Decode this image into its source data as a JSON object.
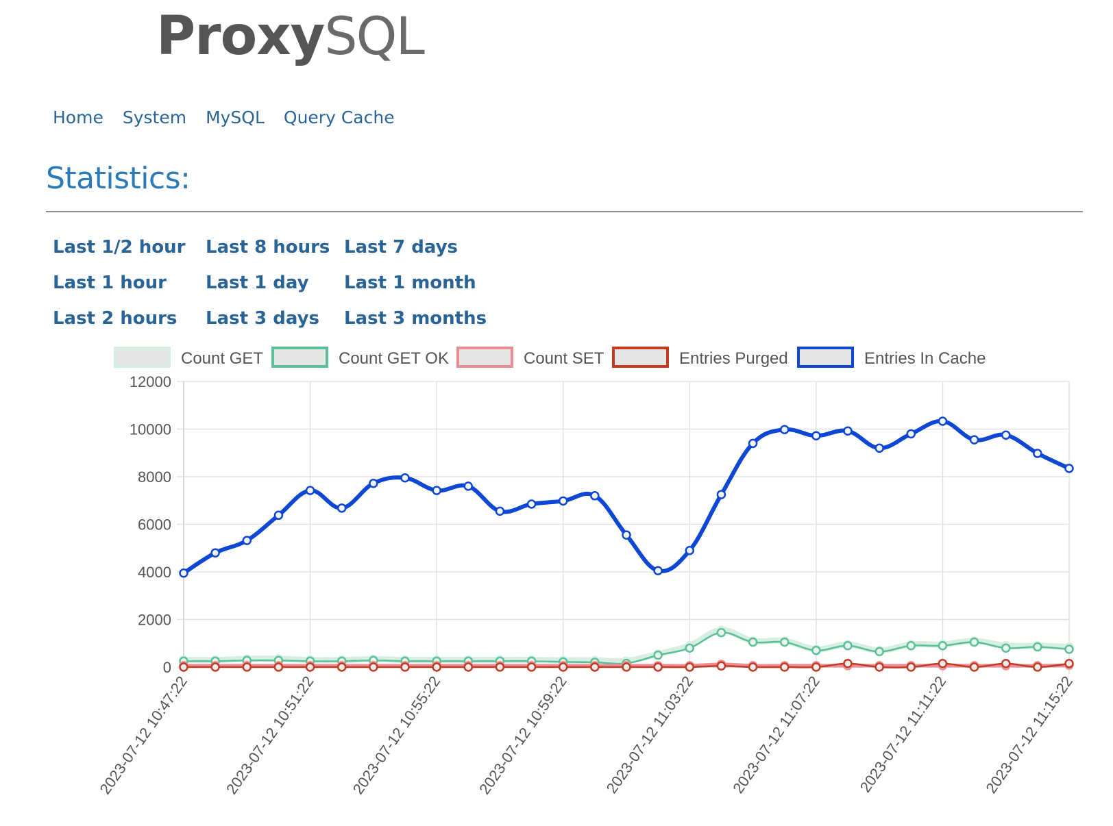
{
  "logo": {
    "bold": "Proxy",
    "light": "SQL"
  },
  "nav": [
    "Home",
    "System",
    "MySQL",
    "Query Cache"
  ],
  "page_title": "Statistics:",
  "ranges": [
    [
      "Last 1/2 hour",
      "Last 8 hours",
      "Last 7 days"
    ],
    [
      "Last 1 hour",
      "Last 1 day",
      "Last 1 month"
    ],
    [
      "Last 2 hours",
      "Last 3 days",
      "Last 3 months"
    ]
  ],
  "colors": {
    "link": "#2a6496",
    "title": "#2a7ab8",
    "grid": "#e3e3e3"
  },
  "chart_data": {
    "type": "line",
    "ylim": [
      0,
      12000
    ],
    "yticks": [
      0,
      2000,
      4000,
      6000,
      8000,
      10000,
      12000
    ],
    "grid": true,
    "legend_position": "top",
    "x": [
      "2023-07-12 10:47:22",
      "",
      "",
      "",
      "2023-07-12 10:51:22",
      "",
      "",
      "",
      "2023-07-12 10:55:22",
      "",
      "",
      "",
      "2023-07-12 10:59:22",
      "",
      "",
      "",
      "2023-07-12 11:03:22",
      "",
      "",
      "",
      "2023-07-12 11:07:22",
      "",
      "",
      "",
      "2023-07-12 11:11:22",
      "",
      "",
      "",
      "2023-07-12 11:15:22"
    ],
    "series": [
      {
        "name": "Count GET",
        "color": "#d6efe2",
        "fill": "#e6e6e6",
        "width": 9,
        "values": [
          300,
          300,
          350,
          350,
          300,
          300,
          330,
          300,
          300,
          300,
          300,
          300,
          280,
          280,
          260,
          550,
          900,
          1550,
          1100,
          1100,
          750,
          950,
          700,
          950,
          950,
          1100,
          900,
          900,
          850
        ]
      },
      {
        "name": "Count GET OK",
        "color": "#5bbf98",
        "fill": "#e9f5ef",
        "width": 2.5,
        "values": [
          250,
          250,
          280,
          280,
          250,
          250,
          280,
          250,
          250,
          250,
          250,
          250,
          220,
          200,
          160,
          500,
          800,
          1450,
          1050,
          1050,
          700,
          900,
          650,
          900,
          900,
          1050,
          800,
          850,
          750
        ]
      },
      {
        "name": "Count SET",
        "color": "#ec8c94",
        "fill": "#eeeeee",
        "width": 5,
        "values": [
          60,
          60,
          60,
          60,
          60,
          60,
          60,
          60,
          60,
          60,
          60,
          60,
          60,
          60,
          60,
          60,
          60,
          120,
          60,
          60,
          60,
          60,
          60,
          60,
          60,
          60,
          60,
          60,
          80
        ]
      },
      {
        "name": "Entries Purged",
        "color": "#c23b22",
        "fill": "#eeeeee",
        "width": 2.5,
        "values": [
          0,
          0,
          0,
          0,
          0,
          0,
          0,
          0,
          0,
          0,
          0,
          0,
          0,
          0,
          0,
          0,
          0,
          50,
          0,
          0,
          0,
          150,
          0,
          0,
          150,
          0,
          150,
          0,
          150
        ]
      },
      {
        "name": "Entries In Cache",
        "color": "#0e47d4",
        "fill": "#f4f6ff",
        "width": 6,
        "values": [
          3950,
          4800,
          5320,
          6380,
          7420,
          6680,
          7720,
          7950,
          7420,
          7600,
          6550,
          6850,
          6980,
          7200,
          5550,
          4050,
          4900,
          7250,
          9400,
          9980,
          9720,
          9920,
          9200,
          9800,
          10330,
          9550,
          9750,
          8980,
          8350
        ]
      }
    ]
  }
}
